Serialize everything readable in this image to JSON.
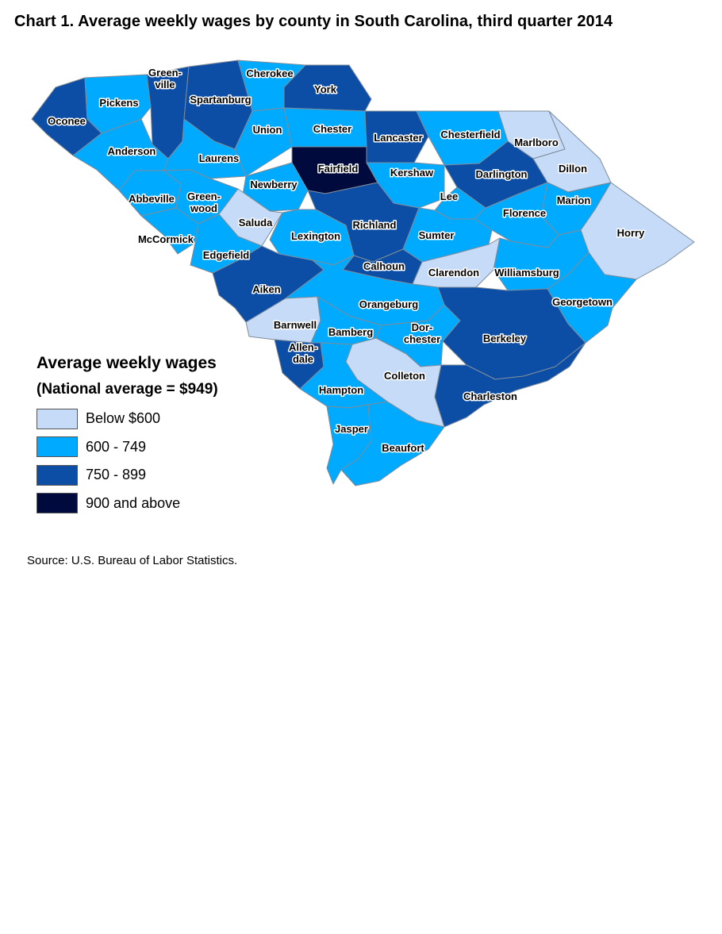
{
  "title": "Chart 1. Average weekly wages by county in South Carolina, third quarter 2014",
  "legend": {
    "title": "Average weekly wages",
    "subtitle": "(National average = $949)",
    "items": [
      {
        "label": "Below $600",
        "color": "#c6dbf7"
      },
      {
        "label": "600 - 749",
        "color": "#00aaff"
      },
      {
        "label": "750 - 899",
        "color": "#0c4ea6"
      },
      {
        "label": "900 and above",
        "color": "#000a3d"
      }
    ]
  },
  "source": "Source: U.S. Bureau of Labor Statistics.",
  "counties": [
    {
      "name": "Oconee",
      "label": "Oconee",
      "wage_class": "750 - 899"
    },
    {
      "name": "Pickens",
      "label": "Pickens",
      "wage_class": "600 - 749"
    },
    {
      "name": "Greenville",
      "label": "Green-\nville",
      "wage_class": "750 - 899"
    },
    {
      "name": "Spartanburg",
      "label": "Spartanburg",
      "wage_class": "750 - 899"
    },
    {
      "name": "Cherokee",
      "label": "Cherokee",
      "wage_class": "600 - 749"
    },
    {
      "name": "York",
      "label": "York",
      "wage_class": "750 - 899"
    },
    {
      "name": "Anderson",
      "label": "Anderson",
      "wage_class": "600 - 749"
    },
    {
      "name": "Laurens",
      "label": "Laurens",
      "wage_class": "600 - 749"
    },
    {
      "name": "Union",
      "label": "Union",
      "wage_class": "600 - 749"
    },
    {
      "name": "Chester",
      "label": "Chester",
      "wage_class": "600 - 749"
    },
    {
      "name": "Lancaster",
      "label": "Lancaster",
      "wage_class": "750 - 899"
    },
    {
      "name": "Chesterfield",
      "label": "Chesterfield",
      "wage_class": "600 - 749"
    },
    {
      "name": "Marlboro",
      "label": "Marlboro",
      "wage_class": "Below $600"
    },
    {
      "name": "Dillon",
      "label": "Dillon",
      "wage_class": "Below $600"
    },
    {
      "name": "Fairfield",
      "label": "Fairfield",
      "wage_class": "900 and above"
    },
    {
      "name": "Kershaw",
      "label": "Kershaw",
      "wage_class": "600 - 749"
    },
    {
      "name": "Darlington",
      "label": "Darlington",
      "wage_class": "750 - 899"
    },
    {
      "name": "Newberry",
      "label": "Newberry",
      "wage_class": "600 - 749"
    },
    {
      "name": "Abbeville",
      "label": "Abbeville",
      "wage_class": "600 - 749"
    },
    {
      "name": "Greenwood",
      "label": "Green-\nwood",
      "wage_class": "600 - 749"
    },
    {
      "name": "Saluda",
      "label": "Saluda",
      "wage_class": "Below $600"
    },
    {
      "name": "Lee",
      "label": "Lee",
      "wage_class": "600 - 749"
    },
    {
      "name": "Marion",
      "label": "Marion",
      "wage_class": "600 - 749"
    },
    {
      "name": "Florence",
      "label": "Florence",
      "wage_class": "600 - 749"
    },
    {
      "name": "Richland",
      "label": "Richland",
      "wage_class": "750 - 899"
    },
    {
      "name": "Horry",
      "label": "Horry",
      "wage_class": "Below $600"
    },
    {
      "name": "McCormick",
      "label": "McCormick",
      "wage_class": "600 - 749"
    },
    {
      "name": "Lexington",
      "label": "Lexington",
      "wage_class": "600 - 749"
    },
    {
      "name": "Sumter",
      "label": "Sumter",
      "wage_class": "600 - 749"
    },
    {
      "name": "Edgefield",
      "label": "Edgefield",
      "wage_class": "600 - 749"
    },
    {
      "name": "Calhoun",
      "label": "Calhoun",
      "wage_class": "750 - 899"
    },
    {
      "name": "Clarendon",
      "label": "Clarendon",
      "wage_class": "Below $600"
    },
    {
      "name": "Williamsburg",
      "label": "Williamsburg",
      "wage_class": "600 - 749"
    },
    {
      "name": "Aiken",
      "label": "Aiken",
      "wage_class": "750 - 899"
    },
    {
      "name": "Orangeburg",
      "label": "Orangeburg",
      "wage_class": "600 - 749"
    },
    {
      "name": "Georgetown",
      "label": "Georgetown",
      "wage_class": "600 - 749"
    },
    {
      "name": "Barnwell",
      "label": "Barnwell",
      "wage_class": "Below $600"
    },
    {
      "name": "Bamberg",
      "label": "Bamberg",
      "wage_class": "600 - 749"
    },
    {
      "name": "Dorchester",
      "label": "Dor-\nchester",
      "wage_class": "600 - 749"
    },
    {
      "name": "Berkeley",
      "label": "Berkeley",
      "wage_class": "750 - 899"
    },
    {
      "name": "Allendale",
      "label": "Allen-\ndale",
      "wage_class": "750 - 899"
    },
    {
      "name": "Colleton",
      "label": "Colleton",
      "wage_class": "Below $600"
    },
    {
      "name": "Hampton",
      "label": "Hampton",
      "wage_class": "600 - 749"
    },
    {
      "name": "Charleston",
      "label": "Charleston",
      "wage_class": "750 - 899"
    },
    {
      "name": "Jasper",
      "label": "Jasper",
      "wage_class": "600 - 749"
    },
    {
      "name": "Beaufort",
      "label": "Beaufort",
      "wage_class": "600 - 749"
    }
  ]
}
